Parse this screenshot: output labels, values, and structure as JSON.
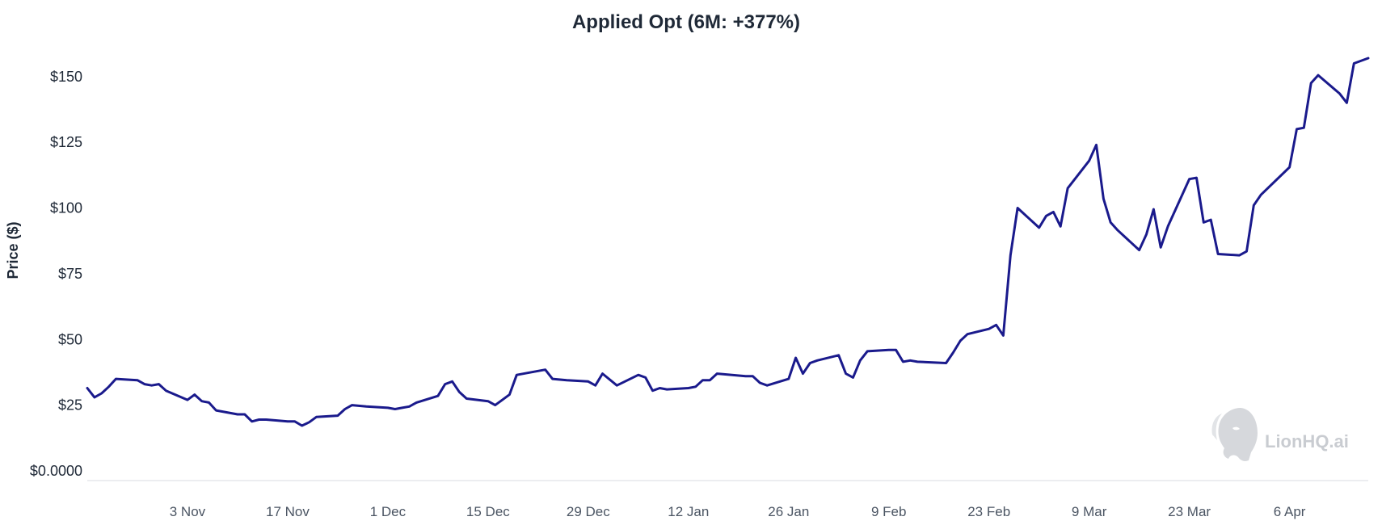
{
  "chart_data": {
    "type": "line",
    "title": "Applied Opt (6M: +377%)",
    "ylabel": "Price ($)",
    "xlabel": "",
    "ylim": [
      0,
      160
    ],
    "yticks": [
      {
        "value": 0,
        "label": "$0.0000"
      },
      {
        "value": 25,
        "label": "$25"
      },
      {
        "value": 50,
        "label": "$50"
      },
      {
        "value": 75,
        "label": "$75"
      },
      {
        "value": 100,
        "label": "$100"
      },
      {
        "value": 125,
        "label": "$125"
      },
      {
        "value": 150,
        "label": "$150"
      }
    ],
    "xrange": [
      "2025-10-20",
      "2026-04-17"
    ],
    "xticks": [
      {
        "date": "2025-11-03",
        "label": "3 Nov"
      },
      {
        "date": "2025-11-17",
        "label": "17 Nov"
      },
      {
        "date": "2025-12-01",
        "label": "1 Dec"
      },
      {
        "date": "2025-12-15",
        "label": "15 Dec"
      },
      {
        "date": "2025-12-29",
        "label": "29 Dec"
      },
      {
        "date": "2026-01-12",
        "label": "12 Jan"
      },
      {
        "date": "2026-01-26",
        "label": "26 Jan"
      },
      {
        "date": "2026-02-09",
        "label": "9 Feb"
      },
      {
        "date": "2026-02-23",
        "label": "23 Feb"
      },
      {
        "date": "2026-03-09",
        "label": "9 Mar"
      },
      {
        "date": "2026-03-23",
        "label": "23 Mar"
      },
      {
        "date": "2026-04-06",
        "label": "6 Apr"
      }
    ],
    "grid": false,
    "legend": "none",
    "series": [
      {
        "color": "#1a1a8c",
        "points": [
          [
            "2025-10-20",
            31.5
          ],
          [
            "2025-10-21",
            28
          ],
          [
            "2025-10-22",
            29.5
          ],
          [
            "2025-10-23",
            32
          ],
          [
            "2025-10-24",
            35
          ],
          [
            "2025-10-27",
            34.5
          ],
          [
            "2025-10-28",
            33
          ],
          [
            "2025-10-29",
            32.5
          ],
          [
            "2025-10-30",
            33
          ],
          [
            "2025-10-31",
            30.5
          ],
          [
            "2025-11-03",
            27
          ],
          [
            "2025-11-04",
            29
          ],
          [
            "2025-11-05",
            26.5
          ],
          [
            "2025-11-06",
            26
          ],
          [
            "2025-11-07",
            23
          ],
          [
            "2025-11-10",
            21.5
          ],
          [
            "2025-11-11",
            21.5
          ],
          [
            "2025-11-12",
            18.8
          ],
          [
            "2025-11-13",
            19.5
          ],
          [
            "2025-11-14",
            19.5
          ],
          [
            "2025-11-17",
            18.8
          ],
          [
            "2025-11-18",
            18.8
          ],
          [
            "2025-11-19",
            17.2
          ],
          [
            "2025-11-20",
            18.5
          ],
          [
            "2025-11-21",
            20.5
          ],
          [
            "2025-11-24",
            21
          ],
          [
            "2025-11-25",
            23.5
          ],
          [
            "2025-11-26",
            25
          ],
          [
            "2025-11-28",
            24.5
          ],
          [
            "2025-12-01",
            24
          ],
          [
            "2025-12-02",
            23.5
          ],
          [
            "2025-12-03",
            24
          ],
          [
            "2025-12-04",
            24.5
          ],
          [
            "2025-12-05",
            26
          ],
          [
            "2025-12-08",
            28.5
          ],
          [
            "2025-12-09",
            33
          ],
          [
            "2025-12-10",
            34
          ],
          [
            "2025-12-11",
            30
          ],
          [
            "2025-12-12",
            27.5
          ],
          [
            "2025-12-15",
            26.5
          ],
          [
            "2025-12-16",
            25
          ],
          [
            "2025-12-17",
            27
          ],
          [
            "2025-12-18",
            29
          ],
          [
            "2025-12-19",
            36.5
          ],
          [
            "2025-12-22",
            38
          ],
          [
            "2025-12-23",
            38.5
          ],
          [
            "2025-12-24",
            35
          ],
          [
            "2025-12-26",
            34.5
          ],
          [
            "2025-12-29",
            34
          ],
          [
            "2025-12-30",
            32.5
          ],
          [
            "2025-12-31",
            37
          ],
          [
            "2026-01-02",
            32.5
          ],
          [
            "2026-01-05",
            36.5
          ],
          [
            "2026-01-06",
            35.5
          ],
          [
            "2026-01-07",
            30.5
          ],
          [
            "2026-01-08",
            31.5
          ],
          [
            "2026-01-09",
            31
          ],
          [
            "2026-01-12",
            31.5
          ],
          [
            "2026-01-13",
            32
          ],
          [
            "2026-01-14",
            34.5
          ],
          [
            "2026-01-15",
            34.5
          ],
          [
            "2026-01-16",
            37
          ],
          [
            "2026-01-20",
            36
          ],
          [
            "2026-01-21",
            36
          ],
          [
            "2026-01-22",
            33.5
          ],
          [
            "2026-01-23",
            32.5
          ],
          [
            "2026-01-26",
            35
          ],
          [
            "2026-01-27",
            43
          ],
          [
            "2026-01-28",
            37
          ],
          [
            "2026-01-29",
            41
          ],
          [
            "2026-01-30",
            42
          ],
          [
            "2026-02-02",
            44
          ],
          [
            "2026-02-03",
            37
          ],
          [
            "2026-02-04",
            35.5
          ],
          [
            "2026-02-05",
            42
          ],
          [
            "2026-02-06",
            45.5
          ],
          [
            "2026-02-09",
            46
          ],
          [
            "2026-02-10",
            46
          ],
          [
            "2026-02-11",
            41.5
          ],
          [
            "2026-02-12",
            42
          ],
          [
            "2026-02-13",
            41.5
          ],
          [
            "2026-02-17",
            41
          ],
          [
            "2026-02-18",
            45
          ],
          [
            "2026-02-19",
            49.5
          ],
          [
            "2026-02-20",
            52
          ],
          [
            "2026-02-23",
            54
          ],
          [
            "2026-02-24",
            55.5
          ],
          [
            "2026-02-25",
            51.5
          ],
          [
            "2026-02-26",
            82
          ],
          [
            "2026-02-27",
            100
          ],
          [
            "2026-03-02",
            92.5
          ],
          [
            "2026-03-03",
            97
          ],
          [
            "2026-03-04",
            98.5
          ],
          [
            "2026-03-05",
            93
          ],
          [
            "2026-03-06",
            107.5
          ],
          [
            "2026-03-09",
            118
          ],
          [
            "2026-03-10",
            124
          ],
          [
            "2026-03-11",
            103.5
          ],
          [
            "2026-03-12",
            94.5
          ],
          [
            "2026-03-13",
            91.5
          ],
          [
            "2026-03-16",
            84
          ],
          [
            "2026-03-17",
            90
          ],
          [
            "2026-03-18",
            99.5
          ],
          [
            "2026-03-19",
            85
          ],
          [
            "2026-03-20",
            93
          ],
          [
            "2026-03-23",
            111
          ],
          [
            "2026-03-24",
            111.5
          ],
          [
            "2026-03-25",
            94.5
          ],
          [
            "2026-03-26",
            95.5
          ],
          [
            "2026-03-27",
            82.5
          ],
          [
            "2026-03-30",
            82
          ],
          [
            "2026-03-31",
            83.5
          ],
          [
            "2026-04-01",
            101
          ],
          [
            "2026-04-02",
            105
          ],
          [
            "2026-04-06",
            115.5
          ],
          [
            "2026-04-07",
            130
          ],
          [
            "2026-04-08",
            130.5
          ],
          [
            "2026-04-09",
            147.5
          ],
          [
            "2026-04-10",
            150.5
          ],
          [
            "2026-04-13",
            143.5
          ],
          [
            "2026-04-14",
            140
          ],
          [
            "2026-04-15",
            155
          ],
          [
            "2026-04-17",
            157
          ]
        ]
      }
    ]
  },
  "watermark": {
    "text": "LionHQ.ai",
    "icon": "lion-head-icon"
  }
}
